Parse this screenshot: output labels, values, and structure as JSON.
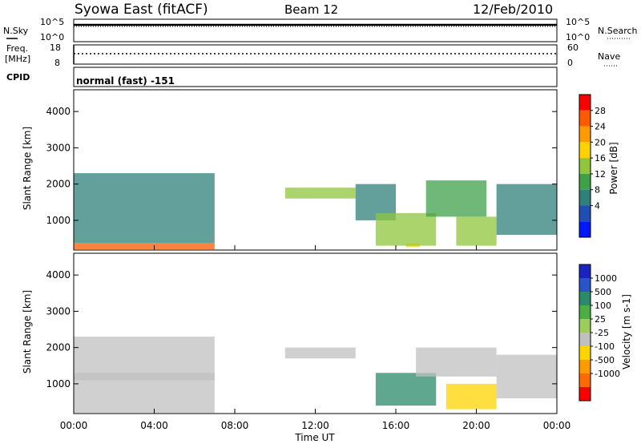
{
  "header": {
    "station": "Syowa East (fitACF)",
    "beam": "Beam 12",
    "date": "12/Feb/2010"
  },
  "top_panels": {
    "nsky_label": "N.Sky",
    "nsky_scale_top": "10^5",
    "nsky_scale_bottom": "10^0",
    "nsearch_label": "N.Search",
    "freq_label_line1": "Freq.",
    "freq_label_line2": "[MHz]",
    "freq_ticks": [
      "18",
      "8"
    ],
    "nave_ticks": [
      "60",
      "0"
    ],
    "nave_label": "Nave",
    "cpid_label": "CPID",
    "cpid_value": "normal (fast) -151"
  },
  "axes": {
    "xlabel": "Time UT",
    "x_ticks": [
      "00:00",
      "04:00",
      "08:00",
      "12:00",
      "16:00",
      "20:00",
      "00:00"
    ],
    "ylabel_power": "Slant Range [km]",
    "ylabel_velocity": "Slant Range [km]",
    "y_ticks": [
      "4000",
      "3000",
      "2000",
      "1000"
    ]
  },
  "colorbars": {
    "power": {
      "label": "Power [dB]",
      "ticks": [
        "28",
        "24",
        "20",
        "16",
        "12",
        "8",
        "4"
      ],
      "colors": [
        "#ff0000",
        "#ff5a00",
        "#ff9a00",
        "#ffd200",
        "#8fc63c",
        "#3fa04a",
        "#2f7f7a",
        "#1f4fb4",
        "#0018ff"
      ]
    },
    "velocity": {
      "label": "Velocity [m s-1]",
      "ticks": [
        "1000",
        "500",
        "100",
        "25",
        "-25",
        "-100",
        "-500",
        "-1000"
      ],
      "colors": [
        "#1a22c0",
        "#2a55c8",
        "#2a8a6a",
        "#4bb043",
        "#9acd5a",
        "#c0c0c0",
        "#ffd400",
        "#ff9a00",
        "#ff6a00",
        "#ff0000"
      ]
    }
  },
  "chart_data": [
    {
      "type": "heatmap",
      "title": "Power",
      "xlabel": "Time UT",
      "ylabel": "Slant Range [km]",
      "xlim_hours": [
        0,
        24
      ],
      "ylim_km": [
        180,
        4600
      ],
      "value_label": "Power [dB]",
      "value_range": [
        0,
        30
      ],
      "cells": [
        {
          "t": [
            0,
            7
          ],
          "r": [
            200,
            380
          ],
          "v": 26
        },
        {
          "t": [
            0,
            7
          ],
          "r": [
            380,
            2300
          ],
          "v": 8
        },
        {
          "t": [
            10.5,
            14
          ],
          "r": [
            1600,
            1900
          ],
          "v": 14
        },
        {
          "t": [
            14,
            16
          ],
          "r": [
            1000,
            2000
          ],
          "v": 8
        },
        {
          "t": [
            16.5,
            17.2
          ],
          "r": [
            260,
            360
          ],
          "v": 20
        },
        {
          "t": [
            15,
            18
          ],
          "r": [
            300,
            1200
          ],
          "v": 14
        },
        {
          "t": [
            17.5,
            20.5
          ],
          "r": [
            1100,
            2100
          ],
          "v": 10
        },
        {
          "t": [
            19,
            21
          ],
          "r": [
            300,
            1100
          ],
          "v": 16
        },
        {
          "t": [
            21,
            24
          ],
          "r": [
            600,
            2000
          ],
          "v": 8
        }
      ]
    },
    {
      "type": "heatmap",
      "title": "Velocity",
      "xlabel": "Time UT",
      "ylabel": "Slant Range [km]",
      "xlim_hours": [
        0,
        24
      ],
      "ylim_km": [
        180,
        4600
      ],
      "value_label": "Velocity [m s-1]",
      "value_range": [
        -1200,
        1200
      ],
      "cells": [
        {
          "t": [
            0,
            7
          ],
          "r": [
            200,
            1300
          ],
          "v": -200
        },
        {
          "t": [
            0,
            7
          ],
          "r": [
            1100,
            2300
          ],
          "v": 0
        },
        {
          "t": [
            10.5,
            14
          ],
          "r": [
            1700,
            2000
          ],
          "v": 0
        },
        {
          "t": [
            15,
            18
          ],
          "r": [
            400,
            1300
          ],
          "v": 600
        },
        {
          "t": [
            17,
            21
          ],
          "r": [
            1200,
            2000
          ],
          "v": 0
        },
        {
          "t": [
            18.5,
            21
          ],
          "r": [
            300,
            1000
          ],
          "v": -300
        },
        {
          "t": [
            21,
            24
          ],
          "r": [
            600,
            1800
          ],
          "v": -150
        }
      ]
    }
  ]
}
